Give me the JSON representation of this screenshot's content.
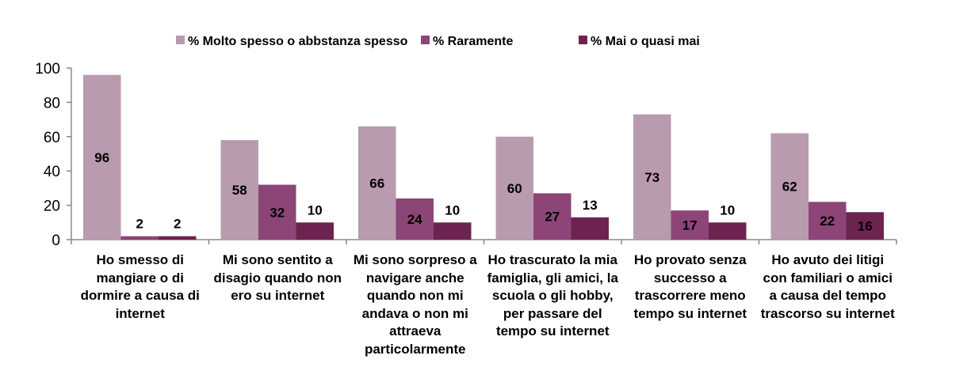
{
  "chart_data": {
    "type": "bar",
    "title": "",
    "xlabel": "",
    "ylabel": "",
    "ylim": [
      0,
      100
    ],
    "yticks": [
      0,
      20,
      40,
      60,
      80,
      100
    ],
    "grid": false,
    "legend_position": "top",
    "categories": [
      "Ho smesso di mangiare o di dormire a causa di internet",
      "Mi sono sentito a disagio quando non ero su internet",
      "Mi sono sorpreso a navigare anche quando non mi andava o non mi attraeva particolarmente",
      "Ho trascurato la mia famiglia, gli amici, la scuola o gli hobby, per passare del tempo su internet",
      "Ho provato senza successo a trascorrere meno tempo su internet",
      "Ho avuto dei litigi con familiari o amici a causa del tempo trascorso su internet"
    ],
    "series": [
      {
        "name": "% Molto spesso o abbstanza spesso",
        "color": "#B89BAE",
        "values": [
          96,
          58,
          66,
          60,
          73,
          62
        ]
      },
      {
        "name": "% Raramente",
        "color": "#8C4576",
        "values": [
          2,
          32,
          24,
          27,
          17,
          22
        ]
      },
      {
        "name": "% Mai o quasi mai",
        "color": "#6D2350",
        "values": [
          2,
          10,
          10,
          13,
          10,
          16
        ]
      }
    ]
  }
}
